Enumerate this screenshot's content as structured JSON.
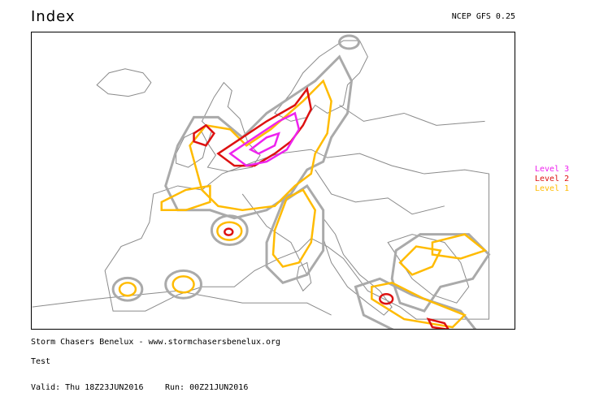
{
  "header": {
    "title": "Index",
    "model": "NCEP GFS 0.25"
  },
  "legend": [
    {
      "label": "Level 3",
      "color": "#ee22ee"
    },
    {
      "label": "Level 2",
      "color": "#dd1111"
    },
    {
      "label": "Level 1",
      "color": "#ffbb00"
    }
  ],
  "colors": {
    "coastline": "#888888",
    "outline": "#aaaaaa",
    "level1": "#ffbb00",
    "level2": "#dd1111",
    "level3": "#ee22ee"
  },
  "footer": {
    "credit": "Storm Chasers Benelux - www.stormchasersbenelux.org",
    "note": "Test",
    "valid": "Valid: Thu 18Z23JUN2016",
    "run": "Run: 00Z21JUN2016"
  }
}
